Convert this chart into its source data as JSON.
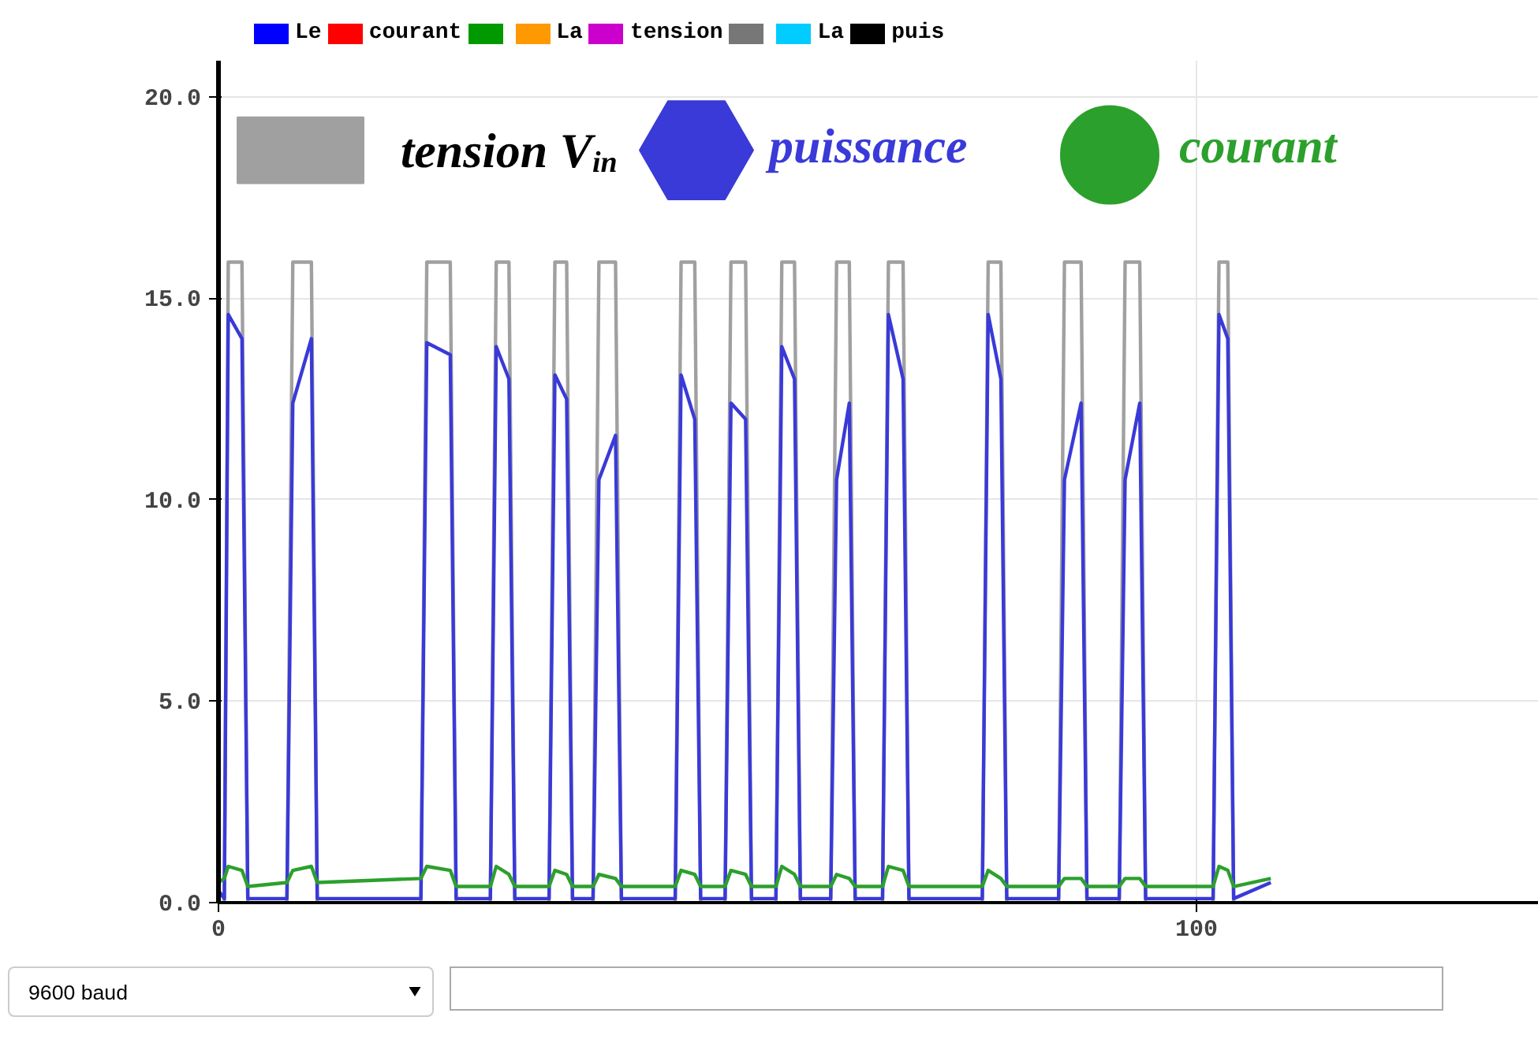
{
  "chart_data": {
    "type": "line",
    "xlim": [
      0,
      135
    ],
    "ylim": [
      0,
      20.9
    ],
    "xticks": [
      0,
      100
    ],
    "yticks": [
      {
        "value": 0,
        "label": "0.0"
      },
      {
        "value": 5,
        "label": "5.0"
      },
      {
        "value": 10,
        "label": "10.0"
      },
      {
        "value": 15,
        "label": "15.0"
      },
      {
        "value": 20,
        "label": "20.0"
      }
    ],
    "grid": true,
    "legend": "top",
    "marker": "none",
    "line_style": "solid",
    "series": [
      {
        "name": "tension V$_{in}$",
        "color": "#a0a0a0",
        "x": [
          0,
          0.6,
          1.0,
          2.4,
          3.0,
          7.0,
          7.6,
          9.5,
          10.1,
          20.7,
          21.3,
          23.7,
          24.3,
          27.8,
          28.4,
          29.7,
          30.3,
          33.8,
          34.4,
          35.6,
          36.2,
          38.3,
          38.9,
          40.6,
          41.2,
          46.7,
          47.3,
          48.7,
          49.3,
          51.8,
          52.4,
          53.9,
          54.5,
          57.0,
          57.6,
          58.9,
          59.5,
          62.6,
          63.2,
          64.5,
          65.1,
          67.9,
          68.5,
          70.0,
          70.6,
          78.1,
          78.7,
          80.0,
          80.6,
          85.9,
          86.5,
          88.2,
          88.8,
          92.1,
          92.7,
          94.2,
          94.8,
          101.7,
          102.3,
          103.2,
          103.8,
          107.6
        ],
        "values": [
          0,
          0,
          15.9,
          15.9,
          0,
          0,
          15.9,
          15.9,
          0,
          0,
          15.9,
          15.9,
          0,
          0,
          15.9,
          15.9,
          0,
          0,
          15.9,
          15.9,
          0,
          0,
          15.9,
          15.9,
          0,
          0,
          15.9,
          15.9,
          0,
          0,
          15.9,
          15.9,
          0,
          0,
          15.9,
          15.9,
          0,
          0,
          15.9,
          15.9,
          0,
          0,
          15.9,
          15.9,
          0,
          0,
          15.9,
          15.9,
          0,
          0,
          15.9,
          15.9,
          0,
          0,
          15.9,
          15.9,
          0,
          0,
          15.9,
          15.9,
          0,
          0
        ]
      },
      {
        "name": "puissance",
        "color": "#3a3ad8",
        "x": [
          0,
          0.6,
          1.0,
          2.4,
          3.0,
          7.0,
          7.6,
          9.5,
          10.1,
          20.7,
          21.3,
          23.7,
          24.3,
          27.8,
          28.4,
          29.7,
          30.3,
          33.8,
          34.4,
          35.6,
          36.2,
          38.3,
          38.9,
          40.6,
          41.2,
          46.7,
          47.3,
          48.7,
          49.3,
          51.8,
          52.4,
          53.9,
          54.5,
          57.0,
          57.6,
          58.9,
          59.5,
          62.6,
          63.2,
          64.5,
          65.1,
          67.9,
          68.5,
          70.0,
          70.6,
          78.1,
          78.7,
          80.0,
          80.6,
          85.9,
          86.5,
          88.2,
          88.8,
          92.1,
          92.7,
          94.2,
          94.8,
          101.7,
          102.3,
          103.2,
          103.8,
          107.6
        ],
        "values": [
          0.3,
          0.1,
          14.6,
          14.0,
          0.1,
          0.1,
          12.4,
          14.0,
          0.1,
          0.1,
          13.9,
          13.6,
          0.1,
          0.1,
          13.8,
          13.0,
          0.1,
          0.1,
          13.1,
          12.5,
          0.1,
          0.1,
          10.5,
          11.6,
          0.1,
          0.1,
          13.1,
          12.0,
          0.1,
          0.1,
          12.4,
          12.0,
          0.1,
          0.1,
          13.8,
          13.0,
          0.1,
          0.1,
          10.5,
          12.4,
          0.1,
          0.1,
          14.6,
          13.0,
          0.1,
          0.1,
          14.6,
          13.0,
          0.1,
          0.1,
          10.5,
          12.4,
          0.1,
          0.1,
          10.5,
          12.4,
          0.1,
          0.1,
          14.6,
          14.0,
          0.1,
          0.5
        ]
      },
      {
        "name": "courant",
        "color": "#2ca02c",
        "x": [
          0,
          0.6,
          1.0,
          2.4,
          3.0,
          7.0,
          7.6,
          9.5,
          10.1,
          20.7,
          21.3,
          23.7,
          24.3,
          27.8,
          28.4,
          29.7,
          30.3,
          33.8,
          34.4,
          35.6,
          36.2,
          38.3,
          38.9,
          40.6,
          41.2,
          46.7,
          47.3,
          48.7,
          49.3,
          51.8,
          52.4,
          53.9,
          54.5,
          57.0,
          57.6,
          58.9,
          59.5,
          62.6,
          63.2,
          64.5,
          65.1,
          67.9,
          68.5,
          70.0,
          70.6,
          78.1,
          78.7,
          80.0,
          80.6,
          85.9,
          86.5,
          88.2,
          88.8,
          92.1,
          92.7,
          94.2,
          94.8,
          101.7,
          102.3,
          103.2,
          103.8,
          107.6
        ],
        "values": [
          0.5,
          0.6,
          0.9,
          0.8,
          0.4,
          0.5,
          0.8,
          0.9,
          0.5,
          0.6,
          0.9,
          0.8,
          0.4,
          0.4,
          0.9,
          0.7,
          0.4,
          0.4,
          0.8,
          0.7,
          0.4,
          0.4,
          0.7,
          0.6,
          0.4,
          0.4,
          0.8,
          0.7,
          0.4,
          0.4,
          0.8,
          0.7,
          0.4,
          0.4,
          0.9,
          0.7,
          0.4,
          0.4,
          0.7,
          0.6,
          0.4,
          0.4,
          0.9,
          0.8,
          0.4,
          0.4,
          0.8,
          0.6,
          0.4,
          0.4,
          0.6,
          0.6,
          0.4,
          0.4,
          0.6,
          0.6,
          0.4,
          0.4,
          0.9,
          0.8,
          0.4,
          0.6
        ]
      }
    ],
    "annotations": [
      "Le",
      "courant",
      "La",
      "tension",
      "La",
      "puis",
      "9600 baud"
    ]
  }
}
